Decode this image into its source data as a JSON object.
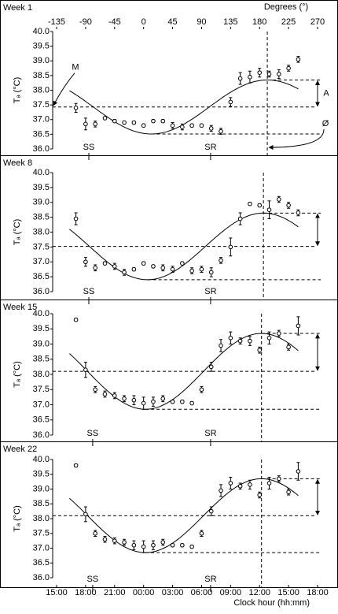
{
  "x_axis_top": {
    "label": "Degrees (°)",
    "xlim": [
      -135,
      270
    ],
    "xticks": [
      -135,
      -90,
      -45,
      0,
      45,
      90,
      135,
      180,
      225,
      270
    ]
  },
  "x_axis_bottom": {
    "label": "Clock hour (hh:mm)",
    "xticks": [
      {
        "value": -135,
        "label": "15:00"
      },
      {
        "value": -90,
        "label": "18:00"
      },
      {
        "value": -45,
        "label": "21:00"
      },
      {
        "value": 0,
        "label": "00:00"
      },
      {
        "value": 45,
        "label": "03:00"
      },
      {
        "value": 90,
        "label": "06:00"
      },
      {
        "value": 135,
        "label": "09:00"
      },
      {
        "value": 180,
        "label": "12:00"
      },
      {
        "value": 225,
        "label": "15:00"
      },
      {
        "value": 270,
        "label": "18:00"
      }
    ]
  },
  "chart_data": [
    {
      "type": "scatter",
      "title": "Week 1",
      "ylabel": "Tₐ (°C)",
      "x": [
        -105,
        -90,
        -75,
        -60,
        -45,
        -30,
        -15,
        0,
        15,
        30,
        45,
        60,
        75,
        90,
        105,
        120,
        135,
        150,
        165,
        180,
        195,
        210,
        225,
        240
      ],
      "values": [
        37.4,
        36.85,
        36.85,
        37.05,
        36.95,
        36.9,
        36.9,
        36.8,
        36.95,
        36.95,
        36.8,
        36.75,
        36.8,
        36.8,
        36.7,
        36.6,
        37.6,
        38.4,
        38.45,
        38.6,
        38.55,
        38.55,
        38.75,
        39.05
      ],
      "errors": [
        0.15,
        0.2,
        0.1,
        0.05,
        0.05,
        0.05,
        0.05,
        0.05,
        0.05,
        0.05,
        0.1,
        0.1,
        0.05,
        0.05,
        0.1,
        0.1,
        0.15,
        0.2,
        0.2,
        0.15,
        0.1,
        0.15,
        0.1,
        0.1
      ],
      "mesor": 37.43,
      "amplitude": 0.92,
      "acrophase": 192,
      "events": [
        {
          "label": "SS",
          "x": -85
        },
        {
          "label": "SR",
          "x": 104
        }
      ],
      "marker_labels": {
        "mesor": "M",
        "amplitude": "A",
        "acrophase": "Ø"
      },
      "ylim": [
        36,
        40
      ],
      "yticks": [
        {
          "value": 36,
          "label": "36.0"
        },
        {
          "value": 36.5,
          "label": "36.5"
        },
        {
          "value": 37,
          "label": "37.0"
        },
        {
          "value": 37.5,
          "label": "37.5"
        },
        {
          "value": 38,
          "label": "38.0"
        },
        {
          "value": 38.5,
          "label": "38.5"
        },
        {
          "value": 39,
          "label": "39.0"
        },
        {
          "value": 39.5,
          "label": "39.5"
        },
        {
          "value": 40,
          "label": "40.0"
        }
      ]
    },
    {
      "type": "scatter",
      "title": "Week 8",
      "ylabel": "Tₐ (°C)",
      "x": [
        -105,
        -90,
        -75,
        -60,
        -45,
        -30,
        -15,
        0,
        15,
        30,
        45,
        60,
        75,
        90,
        105,
        120,
        135,
        150,
        165,
        180,
        195,
        210,
        225,
        240
      ],
      "values": [
        38.45,
        37.0,
        36.8,
        36.95,
        36.85,
        36.65,
        36.75,
        36.95,
        36.85,
        36.8,
        36.75,
        36.95,
        36.7,
        36.75,
        36.65,
        37.05,
        37.5,
        38.45,
        38.95,
        38.9,
        38.75,
        39.1,
        38.9,
        38.65
      ],
      "errors": [
        0.2,
        0.15,
        0.1,
        0.05,
        0.1,
        0.1,
        0.05,
        0.05,
        0.05,
        0.1,
        0.1,
        0.05,
        0.1,
        0.1,
        0.15,
        0.1,
        0.3,
        0.2,
        0.05,
        0.05,
        0.3,
        0.1,
        0.1,
        0.1
      ],
      "mesor": 37.52,
      "amplitude": 1.12,
      "acrophase": 186,
      "events": [
        {
          "label": "SS",
          "x": -85
        },
        {
          "label": "SR",
          "x": 104
        }
      ],
      "ylim": [
        36,
        40
      ],
      "yticks": [
        {
          "value": 36,
          "label": "36.0"
        },
        {
          "value": 36.5,
          "label": "36.5"
        },
        {
          "value": 37,
          "label": "37.0"
        },
        {
          "value": 37.5,
          "label": "37.5"
        },
        {
          "value": 38,
          "label": "38.0"
        },
        {
          "value": 38.5,
          "label": "38.5"
        },
        {
          "value": 39,
          "label": "39.0"
        },
        {
          "value": 39.5,
          "label": "39.5"
        },
        {
          "value": 40,
          "label": "40.0"
        }
      ]
    },
    {
      "type": "scatter",
      "title": "Week 15",
      "ylabel": "Tₐ (°C)",
      "x": [
        -105,
        -90,
        -75,
        -60,
        -45,
        -30,
        -15,
        0,
        15,
        30,
        45,
        60,
        75,
        90,
        105,
        120,
        135,
        150,
        165,
        180,
        195,
        210,
        225,
        240
      ],
      "values": [
        39.8,
        38.15,
        37.5,
        37.35,
        37.3,
        37.2,
        37.15,
        37.05,
        37.1,
        37.2,
        37.1,
        37.1,
        37.05,
        37.5,
        38.25,
        38.95,
        39.2,
        39.1,
        39.1,
        38.8,
        39.2,
        39.35,
        38.9,
        39.6
      ],
      "errors": [
        0.05,
        0.25,
        0.1,
        0.1,
        0.1,
        0.1,
        0.15,
        0.2,
        0.15,
        0.1,
        0.05,
        0.05,
        0.05,
        0.1,
        0.15,
        0.2,
        0.2,
        0.1,
        0.15,
        0.1,
        0.2,
        0.1,
        0.1,
        0.3
      ],
      "mesor": 38.1,
      "amplitude": 1.25,
      "acrophase": 183,
      "events": [
        {
          "label": "SS",
          "x": -79
        },
        {
          "label": "SR",
          "x": 104
        }
      ],
      "ylim": [
        36,
        40
      ],
      "yticks": [
        {
          "value": 36,
          "label": "36.0"
        },
        {
          "value": 36.5,
          "label": "36.5"
        },
        {
          "value": 37,
          "label": "37.0"
        },
        {
          "value": 37.5,
          "label": "37.5"
        },
        {
          "value": 38,
          "label": "38.0"
        },
        {
          "value": 38.5,
          "label": "38.5"
        },
        {
          "value": 39,
          "label": "39.0"
        },
        {
          "value": 39.5,
          "label": "39.5"
        },
        {
          "value": 40,
          "label": "40.0"
        }
      ]
    },
    {
      "type": "scatter",
      "title": "Week 22",
      "ylabel": "Tₐ (°C)",
      "x": [
        -105,
        -90,
        -75,
        -60,
        -45,
        -30,
        -15,
        0,
        15,
        30,
        45,
        60,
        75,
        90,
        105,
        120,
        135,
        150,
        165,
        180,
        195,
        210,
        225,
        240
      ],
      "values": [
        39.8,
        38.15,
        37.5,
        37.3,
        37.25,
        37.2,
        37.1,
        37.05,
        37.1,
        37.2,
        37.1,
        37.1,
        37.05,
        37.5,
        38.25,
        38.95,
        39.2,
        39.1,
        39.15,
        38.8,
        39.2,
        39.35,
        38.9,
        39.6
      ],
      "errors": [
        0.05,
        0.25,
        0.1,
        0.1,
        0.1,
        0.1,
        0.15,
        0.2,
        0.15,
        0.1,
        0.05,
        0.05,
        0.05,
        0.1,
        0.15,
        0.2,
        0.2,
        0.1,
        0.15,
        0.1,
        0.2,
        0.1,
        0.1,
        0.3
      ],
      "mesor": 38.1,
      "amplitude": 1.25,
      "acrophase": 183,
      "events": [
        {
          "label": "SS",
          "x": -79
        },
        {
          "label": "SR",
          "x": 104
        }
      ],
      "ylim": [
        36,
        40
      ],
      "yticks": [
        {
          "value": 36,
          "label": "36.0"
        },
        {
          "value": 36.5,
          "label": "36.5"
        },
        {
          "value": 37,
          "label": "37.0"
        },
        {
          "value": 37.5,
          "label": "37.5"
        },
        {
          "value": 38,
          "label": "38.0"
        },
        {
          "value": 38.5,
          "label": "38.5"
        },
        {
          "value": 39,
          "label": "39.0"
        },
        {
          "value": 39.5,
          "label": "39.5"
        },
        {
          "value": 40,
          "label": "40.0"
        }
      ]
    }
  ]
}
